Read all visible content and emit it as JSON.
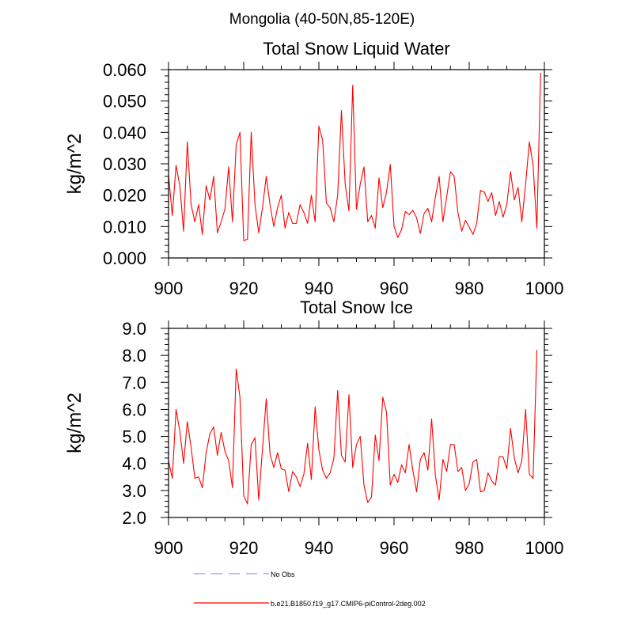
{
  "page_title": "Mongolia (40-50N,85-120E)",
  "colors": {
    "series": "#ff0000",
    "obs": "#9999dd",
    "axis": "#000000"
  },
  "legend": [
    {
      "label": "No Obs",
      "style": "dashed",
      "color": "#9999dd"
    },
    {
      "label": "b.e21.B1850.f19_g17.CMIP6-piControl-2deg.002",
      "style": "solid",
      "color": "#ff0000"
    }
  ],
  "chart_data": [
    {
      "type": "line",
      "title": "Total Snow Liquid Water",
      "xlabel": "",
      "ylabel": "kg/m^2",
      "xlim": [
        900,
        1000
      ],
      "ylim": [
        0.0,
        0.06
      ],
      "xticks": [
        900,
        920,
        940,
        960,
        980,
        1000
      ],
      "xtick_labels": [
        "900",
        "920",
        "940",
        "960",
        "980",
        "1000"
      ],
      "yticks": [
        0.0,
        0.01,
        0.02,
        0.03,
        0.04,
        0.05,
        0.06
      ],
      "ytick_labels": [
        "0.000",
        "0.010",
        "0.020",
        "0.030",
        "0.040",
        "0.050",
        "0.060"
      ],
      "x_start": 900,
      "series": [
        {
          "name": "b.e21.B1850.f19_g17.CMIP6-piControl-2deg.002",
          "values": [
            0.0265,
            0.0135,
            0.0295,
            0.023,
            0.0085,
            0.037,
            0.017,
            0.0115,
            0.017,
            0.0075,
            0.023,
            0.0185,
            0.026,
            0.008,
            0.0115,
            0.0155,
            0.029,
            0.0115,
            0.036,
            0.04,
            0.0055,
            0.006,
            0.04,
            0.017,
            0.008,
            0.016,
            0.026,
            0.017,
            0.01,
            0.016,
            0.02,
            0.0095,
            0.0145,
            0.011,
            0.011,
            0.017,
            0.0145,
            0.011,
            0.02,
            0.0115,
            0.042,
            0.0375,
            0.0175,
            0.016,
            0.0115,
            0.02,
            0.047,
            0.0235,
            0.015,
            0.055,
            0.0155,
            0.0235,
            0.029,
            0.0115,
            0.0135,
            0.0095,
            0.0255,
            0.016,
            0.021,
            0.0298,
            0.01,
            0.0065,
            0.009,
            0.0148,
            0.0138,
            0.0152,
            0.0128,
            0.0078,
            0.0142,
            0.0158,
            0.0115,
            0.0195,
            0.026,
            0.0115,
            0.0195,
            0.0275,
            0.026,
            0.0145,
            0.0085,
            0.012,
            0.0098,
            0.0075,
            0.011,
            0.0215,
            0.021,
            0.018,
            0.0208,
            0.0135,
            0.018,
            0.013,
            0.017,
            0.0275,
            0.0185,
            0.0225,
            0.0115,
            0.0235,
            0.037,
            0.0295,
            0.0095,
            0.059
          ]
        }
      ]
    },
    {
      "type": "line",
      "title": "Total Snow Ice",
      "xlabel": "",
      "ylabel": "kg/m^2",
      "xlim": [
        900,
        1000
      ],
      "ylim": [
        2.0,
        9.0
      ],
      "xticks": [
        900,
        920,
        940,
        960,
        980,
        1000
      ],
      "xtick_labels": [
        "900",
        "920",
        "940",
        "960",
        "980",
        "1000"
      ],
      "yticks": [
        2.0,
        3.0,
        4.0,
        5.0,
        6.0,
        7.0,
        8.0,
        9.0
      ],
      "ytick_labels": [
        "2.0",
        "3.0",
        "4.0",
        "5.0",
        "6.0",
        "7.0",
        "8.0",
        "9.0"
      ],
      "x_start": 900,
      "series": [
        {
          "name": "b.e21.B1850.f19_g17.CMIP6-piControl-2deg.002",
          "values": [
            4.1,
            3.45,
            6.0,
            5.2,
            4.0,
            5.55,
            4.6,
            3.45,
            3.5,
            3.1,
            4.4,
            5.1,
            5.35,
            4.3,
            5.15,
            4.45,
            4.1,
            3.1,
            7.5,
            6.45,
            2.8,
            2.5,
            4.7,
            4.95,
            2.65,
            4.55,
            6.4,
            4.35,
            3.85,
            4.4,
            3.8,
            3.75,
            2.95,
            3.7,
            3.5,
            3.15,
            3.6,
            4.75,
            3.4,
            6.1,
            4.5,
            3.75,
            3.45,
            3.65,
            4.2,
            6.7,
            4.3,
            4.05,
            6.55,
            3.85,
            4.7,
            5.0,
            3.2,
            2.55,
            2.75,
            5.05,
            4.1,
            6.45,
            5.9,
            3.2,
            3.6,
            3.3,
            3.95,
            3.65,
            4.7,
            3.75,
            2.95,
            4.15,
            4.4,
            3.75,
            5.65,
            3.55,
            2.65,
            4.15,
            3.7,
            4.7,
            4.7,
            3.7,
            3.85,
            3.0,
            3.25,
            4.05,
            4.15,
            2.95,
            3.0,
            3.65,
            3.35,
            3.2,
            4.25,
            4.25,
            3.8,
            5.3,
            4.2,
            3.65,
            4.1,
            6.0,
            3.6,
            3.45,
            8.2
          ]
        }
      ]
    }
  ]
}
